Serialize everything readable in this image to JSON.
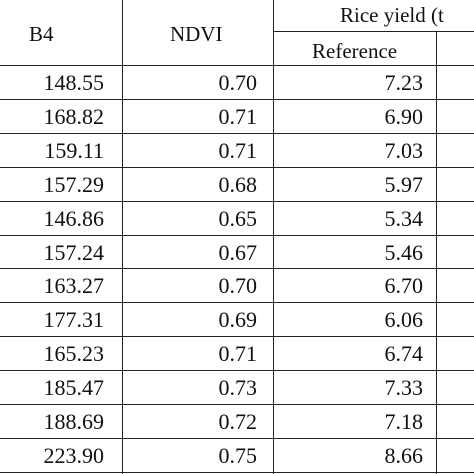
{
  "table": {
    "headers": {
      "b4": "B4",
      "ndvi": "NDVI",
      "rice_yield": "Rice yield (t",
      "reference": "Reference"
    },
    "rows": [
      {
        "b4": "148.55",
        "ndvi": "0.70",
        "reference": "7.23"
      },
      {
        "b4": "168.82",
        "ndvi": "0.71",
        "reference": "6.90"
      },
      {
        "b4": "159.11",
        "ndvi": "0.71",
        "reference": "7.03"
      },
      {
        "b4": "157.29",
        "ndvi": "0.68",
        "reference": "5.97"
      },
      {
        "b4": "146.86",
        "ndvi": "0.65",
        "reference": "5.34"
      },
      {
        "b4": "157.24",
        "ndvi": "0.67",
        "reference": "5.46"
      },
      {
        "b4": "163.27",
        "ndvi": "0.70",
        "reference": "6.70"
      },
      {
        "b4": "177.31",
        "ndvi": "0.69",
        "reference": "6.06"
      },
      {
        "b4": "165.23",
        "ndvi": "0.71",
        "reference": "6.74"
      },
      {
        "b4": "185.47",
        "ndvi": "0.73",
        "reference": "7.33"
      },
      {
        "b4": "188.69",
        "ndvi": "0.72",
        "reference": "7.18"
      },
      {
        "b4": "223.90",
        "ndvi": "0.75",
        "reference": "8.66"
      }
    ]
  }
}
